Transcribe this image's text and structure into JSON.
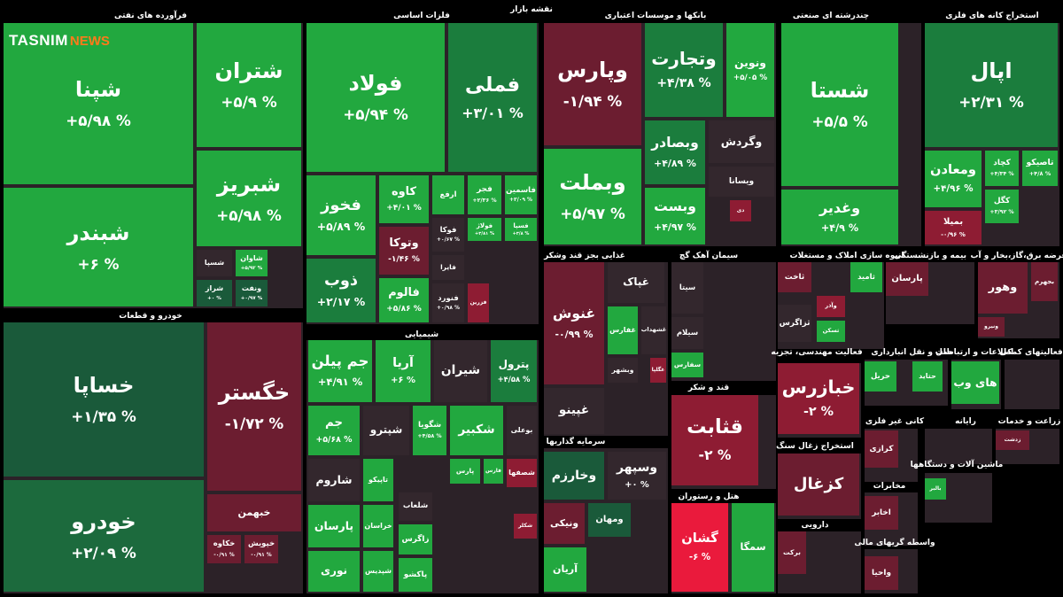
{
  "header": {
    "title": "نقشه بازار"
  },
  "logo": {
    "tasnim": "TASNIM",
    "news": "NEWS"
  },
  "sectors": [
    {
      "title": "فرآورده های نفتی",
      "tiles": [
        {
          "name": "شپنا",
          "change": "+۵/۹۸ %",
          "color": "#22a83f"
        },
        {
          "name": "شبندر",
          "change": "+۶ %",
          "color": "#22a83f"
        },
        {
          "name": "شتران",
          "change": "+۵/۹ %",
          "color": "#22a83f"
        },
        {
          "name": "شبریز",
          "change": "+۵/۹۸ %",
          "color": "#22a83f"
        },
        {
          "name": "شسپا",
          "color": "#33272d"
        },
        {
          "name": "شاوان",
          "change": "+۵/۹۲ %",
          "color": "#22a83f"
        },
        {
          "name": "شراز",
          "change": "+۰ %",
          "color": "#1a5a3a"
        },
        {
          "name": "ونفت",
          "change": "+۰/۹۷ %",
          "color": "#1a5a3a"
        }
      ]
    },
    {
      "title": "خودرو و قطعات",
      "tiles": [
        {
          "name": "خساپا",
          "change": "+۱/۳۵ %",
          "color": "#1a5a3a"
        },
        {
          "name": "خودرو",
          "change": "+۲/۰۹ %",
          "color": "#1c6a3d"
        },
        {
          "name": "خگستر",
          "change": "-۱/۷۲ %",
          "color": "#6c1d30"
        },
        {
          "name": "خبهمن",
          "color": "#6c1d30"
        },
        {
          "name": "خکاوه",
          "change": "-۰/۹۱ %",
          "color": "#6c1d30"
        },
        {
          "name": "خپویش",
          "change": "-۰/۹۱ %",
          "color": "#6c1d30"
        }
      ]
    },
    {
      "title": "فلزات اساسی",
      "tiles": [
        {
          "name": "فولاد",
          "change": "+۵/۹۴ %",
          "color": "#22a83f"
        },
        {
          "name": "فملی",
          "change": "+۳/۰۱ %",
          "color": "#1b7d3d"
        },
        {
          "name": "فخوز",
          "change": "+۵/۸۹ %",
          "color": "#22a83f"
        },
        {
          "name": "ذوب",
          "change": "+۲/۱۷ %",
          "color": "#1b7d3d"
        },
        {
          "name": "کاوه",
          "change": "+۴/۰۱ %",
          "color": "#22a83f"
        },
        {
          "name": "وتوکا",
          "change": "-۱/۴۶ %",
          "color": "#6c1d30"
        },
        {
          "name": "فالوم",
          "change": "+۵/۸۶ %",
          "color": "#22a83f"
        },
        {
          "name": "ارفع",
          "color": "#22a83f"
        },
        {
          "name": "فجر",
          "change": "+۲/۳۶ %",
          "color": "#22a83f"
        },
        {
          "name": "فاسمین",
          "change": "+۳/۰۹ %",
          "color": "#22a83f"
        },
        {
          "name": "فوکا",
          "change": "+۰/۶۷ %",
          "color": "#33272d"
        },
        {
          "name": "فولاژ",
          "change": "+۳/۸۱ %",
          "color": "#22a83f"
        },
        {
          "name": "فسپا",
          "change": "+۳/۸ %",
          "color": "#22a83f"
        },
        {
          "name": "فایرا",
          "color": "#33272d"
        },
        {
          "name": "فنورد",
          "change": "+۰/۹۸ %",
          "color": "#33272d"
        },
        {
          "name": "فزرین",
          "color": "#8e1c33"
        }
      ]
    },
    {
      "title": "شیمیایی",
      "tiles": [
        {
          "name": "جم پیلن",
          "change": "+۴/۹۱ %",
          "color": "#22a83f"
        },
        {
          "name": "آریا",
          "change": "+۶ %",
          "color": "#22a83f"
        },
        {
          "name": "شیران",
          "color": "#33272d"
        },
        {
          "name": "پترول",
          "change": "+۴/۵۸ %",
          "color": "#1b7d3d"
        },
        {
          "name": "جم",
          "change": "+۵/۶۸ %",
          "color": "#22a83f"
        },
        {
          "name": "شپترو",
          "color": "#33272d"
        },
        {
          "name": "شگویا",
          "change": "+۴/۵۸ %",
          "color": "#22a83f"
        },
        {
          "name": "شکبیر",
          "color": "#22a83f"
        },
        {
          "name": "بوعلی",
          "color": "#33272d"
        },
        {
          "name": "شاروم",
          "color": "#33272d"
        },
        {
          "name": "تاپیکو",
          "color": "#22a83f"
        },
        {
          "name": "پارسان",
          "color": "#22a83f"
        },
        {
          "name": "نوری",
          "color": "#22a83f"
        },
        {
          "name": "خراسان",
          "color": "#22a83f"
        },
        {
          "name": "شپدیس",
          "color": "#22a83f"
        },
        {
          "name": "شلعاب",
          "color": "#33272d"
        },
        {
          "name": "زاگرس",
          "color": "#22a83f"
        },
        {
          "name": "پاکشو",
          "color": "#22a83f"
        },
        {
          "name": "شکلر",
          "color": "#8e1c33"
        },
        {
          "name": "شصفها",
          "color": "#8e1c33"
        },
        {
          "name": "پارس",
          "color": "#22a83f"
        },
        {
          "name": "فارس",
          "color": "#22a83f"
        }
      ]
    },
    {
      "title": "بانکها و موسسات اعتباری",
      "tiles": [
        {
          "name": "وپارس",
          "change": "-۱/۹۴ %",
          "color": "#6c1d30"
        },
        {
          "name": "وبملت",
          "change": "+۵/۹۷ %",
          "color": "#22a83f"
        },
        {
          "name": "وتجارت",
          "change": "+۴/۳۸ %",
          "color": "#1b7d3d"
        },
        {
          "name": "ونوین",
          "change": "+۵/۰۵ %",
          "color": "#22a83f"
        },
        {
          "name": "وبصادر",
          "change": "+۴/۸۹ %",
          "color": "#1b7d3d"
        },
        {
          "name": "وگردش",
          "color": "#33272d"
        },
        {
          "name": "ویسانا",
          "color": "#33272d"
        },
        {
          "name": "وبست",
          "change": "+۴/۹۷ %",
          "color": "#22a83f"
        },
        {
          "name": "دی",
          "color": "#8e1c33"
        }
      ]
    },
    {
      "title": "چندرشته ای صنعتی",
      "tiles": [
        {
          "name": "شستا",
          "change": "+۵/۵ %",
          "color": "#22a83f"
        },
        {
          "name": "وغدیر",
          "change": "+۴/۹ %",
          "color": "#22a83f"
        }
      ]
    },
    {
      "title": "استخراج کانه های فلزی",
      "tiles": [
        {
          "name": "اپال",
          "change": "+۲/۳۱ %",
          "color": "#1b7d3d"
        },
        {
          "name": "ومعادن",
          "change": "+۴/۹۶ %",
          "color": "#22a83f"
        },
        {
          "name": "کچاد",
          "change": "+۴/۳۴ %",
          "color": "#22a83f"
        },
        {
          "name": "تاصیکو",
          "change": "+۴/۸ %",
          "color": "#22a83f"
        },
        {
          "name": "کگل",
          "change": "+۳/۹۲ %",
          "color": "#22a83f"
        },
        {
          "name": "بمیلا",
          "change": "-۰/۹۶ %",
          "color": "#8e1c33"
        }
      ]
    },
    {
      "title": "غذایی بجز قند وشکر",
      "tiles": [
        {
          "name": "غنوش",
          "change": "-۰/۹۹ %",
          "color": "#6c1d30"
        },
        {
          "name": "غپینو",
          "color": "#33272d"
        },
        {
          "name": "غپاک",
          "color": "#33272d"
        },
        {
          "name": "غفارس",
          "color": "#22a83f"
        },
        {
          "name": "غشهداب",
          "color": "#33272d"
        },
        {
          "name": "وبشهر",
          "color": "#33272d"
        },
        {
          "name": "غگلپا",
          "color": "#8e1c33"
        }
      ]
    },
    {
      "title": "سیمان آهک گچ",
      "tiles": [
        {
          "name": "سیتا",
          "color": "#33272d"
        },
        {
          "name": "سیلام",
          "color": "#33272d"
        },
        {
          "name": "سفارس",
          "color": "#22a83f"
        }
      ]
    },
    {
      "title": "قند و شکر",
      "tiles": [
        {
          "name": "قثابت",
          "change": "-۲ %",
          "color": "#8e1c33"
        }
      ]
    },
    {
      "title": "هتل و رستوران",
      "tiles": [
        {
          "name": "گشان",
          "change": "-۶ %",
          "color": "#ea1a3c"
        },
        {
          "name": "سمگا",
          "color": "#22a83f"
        }
      ]
    },
    {
      "title": "سرمایه گذاریها",
      "tiles": [
        {
          "name": "وخارزم",
          "color": "#1a5a3a"
        },
        {
          "name": "وسپهر",
          "change": "+۰ %",
          "color": "#33272d"
        },
        {
          "name": "ونیکی",
          "color": "#6c1d30"
        },
        {
          "name": "ومهان",
          "color": "#1a5a3a"
        },
        {
          "name": "آریان",
          "color": "#22a83f"
        }
      ]
    },
    {
      "title": "انبوه سازی املاک و مستغلات",
      "tiles": [
        {
          "name": "ثاخت",
          "color": "#6c1d30"
        },
        {
          "name": "ثامید",
          "color": "#22a83f"
        },
        {
          "name": "ثزاگرس",
          "color": "#33272d"
        },
        {
          "name": "وآذر",
          "color": "#8e1c33"
        },
        {
          "name": "ثسکن",
          "color": "#22a83f"
        }
      ]
    },
    {
      "title": "فعالیت مهندسی، تجزیه",
      "tiles": [
        {
          "name": "خبازرس",
          "change": "-۲ %",
          "color": "#8e1c33"
        }
      ]
    },
    {
      "title": "استخراج زغال سنگ",
      "tiles": [
        {
          "name": "کزغال",
          "color": "#6c1d30"
        }
      ]
    },
    {
      "title": "دارویی",
      "tiles": [
        {
          "name": "برکت",
          "color": "#6c1d30"
        }
      ]
    },
    {
      "title": "بیمه و بازنشستگی",
      "tiles": [
        {
          "name": "پارسان",
          "color": "#6c1d30"
        }
      ]
    },
    {
      "title": "عرضه برق،گاز،بخار و آب",
      "tiles": [
        {
          "name": "وهور",
          "color": "#6c1d30"
        },
        {
          "name": "بجهرم",
          "color": "#6c1d30"
        },
        {
          "name": "ونیرو",
          "color": "#6c1d30"
        }
      ]
    },
    {
      "title": "حمل و نقل انبارداری",
      "tiles": [
        {
          "name": "حریل",
          "color": "#22a83f"
        },
        {
          "name": "حتاید",
          "color": "#22a83f"
        }
      ]
    },
    {
      "title": "اطلاعات و ارتباطات",
      "tiles": [
        {
          "name": "های وب",
          "color": "#22a83f"
        }
      ]
    },
    {
      "title": "فعالیتهای کمکی",
      "tiles": []
    },
    {
      "title": "کانی غیر فلزی",
      "tiles": [
        {
          "name": "کرازی",
          "color": "#6c1d30"
        }
      ]
    },
    {
      "title": "رایانه",
      "tiles": []
    },
    {
      "title": "زراعت و خدمات",
      "tiles": [
        {
          "name": "زدشت",
          "color": "#6c1d30"
        }
      ]
    },
    {
      "title": "مخابرات",
      "tiles": [
        {
          "name": "اخابر",
          "color": "#6c1d30"
        }
      ]
    },
    {
      "title": "ماشین آلات و دستگاهها",
      "tiles": [
        {
          "name": "بالبر",
          "color": "#22a83f"
        }
      ]
    },
    {
      "title": "واسطه گریهای مالی",
      "tiles": [
        {
          "name": "واحیا",
          "color": "#6c1d30"
        }
      ]
    }
  ]
}
